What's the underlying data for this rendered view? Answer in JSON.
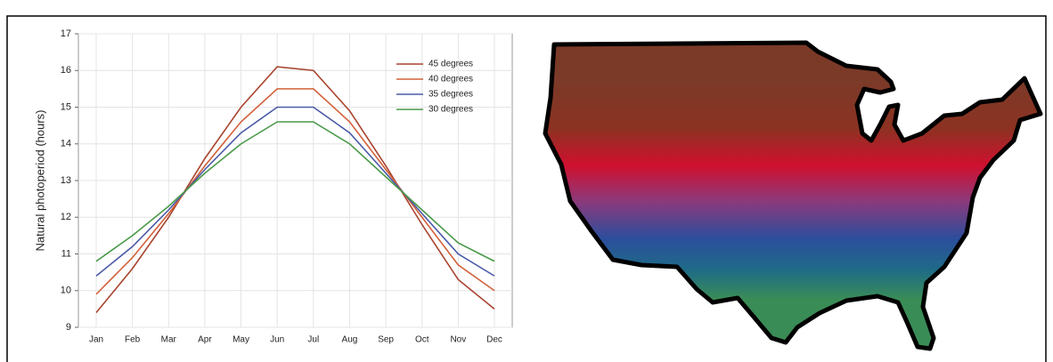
{
  "chart_data": {
    "type": "line",
    "ylabel": "Natural photoperiod (hours)",
    "categories": [
      "Jan",
      "Feb",
      "Mar",
      "Apr",
      "May",
      "Jun",
      "Jul",
      "Aug",
      "Sep",
      "Oct",
      "Nov",
      "Dec"
    ],
    "series": [
      {
        "name": "45 degrees",
        "color": "#a8442e",
        "values": [
          9.4,
          10.6,
          12.0,
          13.6,
          15.0,
          16.1,
          16.0,
          14.9,
          13.4,
          11.8,
          10.3,
          9.5
        ]
      },
      {
        "name": "40 degrees",
        "color": "#d2603a",
        "values": [
          9.9,
          10.9,
          12.1,
          13.4,
          14.6,
          15.5,
          15.5,
          14.6,
          13.3,
          12.0,
          10.7,
          10.0
        ]
      },
      {
        "name": "35 degrees",
        "color": "#4a5aa8",
        "values": [
          10.4,
          11.2,
          12.2,
          13.3,
          14.3,
          15.0,
          15.0,
          14.3,
          13.2,
          12.1,
          11.0,
          10.4
        ]
      },
      {
        "name": "30 degrees",
        "color": "#4a9a4a",
        "values": [
          10.8,
          11.5,
          12.3,
          13.2,
          14.0,
          14.6,
          14.6,
          14.0,
          13.1,
          12.2,
          11.3,
          10.8
        ]
      }
    ],
    "ylim": [
      9,
      17
    ],
    "yticks": [
      9,
      10,
      11,
      12,
      13,
      14,
      15,
      16,
      17
    ],
    "grid": true,
    "legend": "top-right"
  }
}
